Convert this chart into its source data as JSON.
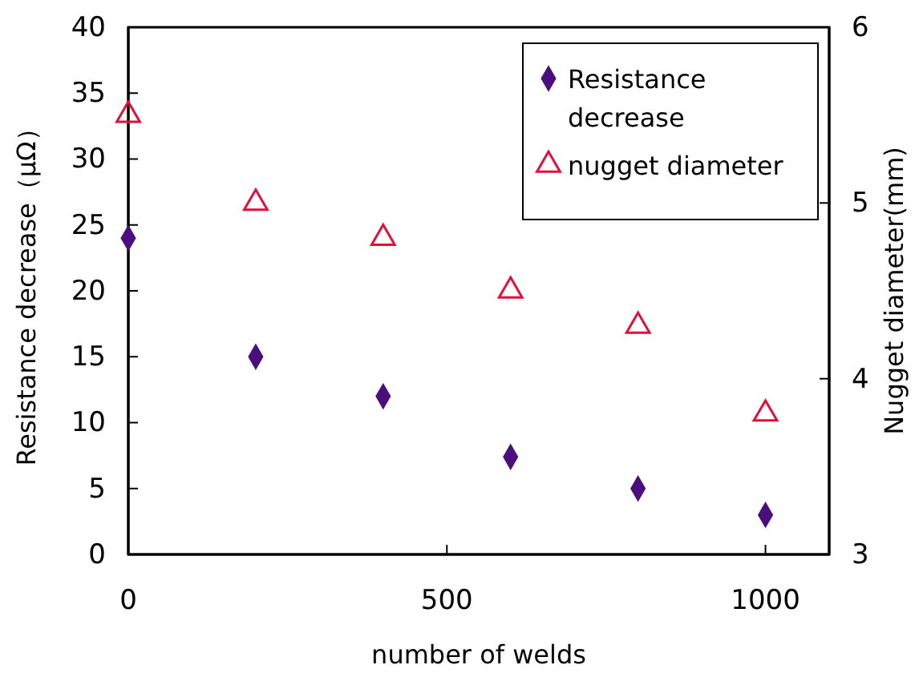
{
  "chart_data": {
    "type": "scatter",
    "xlabel": "number of welds",
    "ylabel": "Resistance decrease（μΩ）",
    "y2label": "Nugget diameter(mm)",
    "x": [
      0,
      200,
      400,
      600,
      800,
      1000
    ],
    "series": [
      {
        "name": "Resistance decrease",
        "color": "#4b0e7d",
        "marker": "diamond",
        "values": [
          24,
          15,
          12,
          7.4,
          5,
          3
        ]
      },
      {
        "name": "nugget diameter",
        "color": "#e0103a",
        "marker": "triangle",
        "axis": "y2",
        "values": [
          5.5,
          5.0,
          4.8,
          4.5,
          4.3,
          3.8
        ]
      }
    ],
    "xlim": [
      0,
      1100
    ],
    "xticks": [
      0,
      500,
      1000
    ],
    "ylim": [
      0,
      40
    ],
    "yticks": [
      0,
      5,
      10,
      15,
      20,
      25,
      30,
      35,
      40
    ],
    "y2lim": [
      3,
      6
    ],
    "y2ticks": [
      3,
      4,
      5,
      6
    ],
    "legend": "top right",
    "grid": false
  }
}
